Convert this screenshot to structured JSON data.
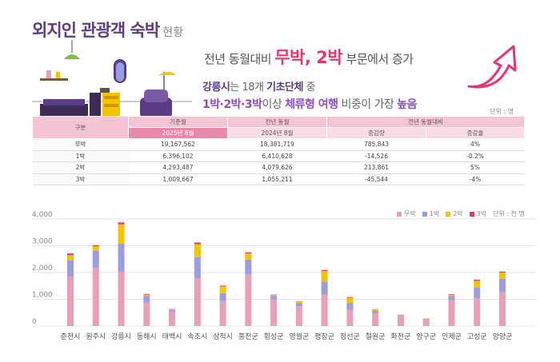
{
  "header": {
    "title": "외지인 관광객 숙박",
    "subtitle": "현황"
  },
  "messages": {
    "line1_prefix": "전년 동월대비",
    "line1_highlight": "무박, 2박",
    "line1_suffix": "부문에서 증가",
    "line2_region": "강릉시",
    "line2_mid": "는 18개",
    "line2_bold": "기초단체",
    "line2_suffix": "중",
    "line3_prefix": "1박·2박·3박",
    "line3_mid": "이상",
    "line3_bold1": "체류형 여행",
    "line3_mid2": "비중이 가장",
    "line3_bold2": "높음"
  },
  "table": {
    "unit": "단위 : 명",
    "col_group": "구분",
    "col_base": "기준월",
    "col_prev": "전년 동월",
    "col_change": "전년 동월대비",
    "sub_base": "2025년 8월",
    "sub_prev": "2024년 8월",
    "sub_diff": "증감량",
    "sub_rate": "증감율",
    "rows": [
      {
        "label": "무박",
        "base": "19,167,562",
        "prev": "18,381,719",
        "diff": "785,843",
        "rate": "4%"
      },
      {
        "label": "1박",
        "base": "6,396,102",
        "prev": "6,410,628",
        "diff": "-14,526",
        "rate": "-0.2%"
      },
      {
        "label": "2박",
        "base": "4,293,487",
        "prev": "4,079,626",
        "diff": "213,861",
        "rate": "5%"
      },
      {
        "label": "3박",
        "base": "1,009,667",
        "prev": "1,055,211",
        "diff": "-45,544",
        "rate": "-4%"
      }
    ]
  },
  "legend": {
    "unit": "단위 : 천 명"
  },
  "colors": {
    "accent": "#5a3d86",
    "highlight": "#e8366d",
    "nobak": "#e8a0b8",
    "bak1": "#9a9ee0",
    "bak2": "#f5c400",
    "bak3": "#e8365a"
  },
  "chart_data": {
    "type": "bar",
    "stacked": true,
    "categories": [
      "춘천시",
      "원주시",
      "강릉시",
      "동해시",
      "태백시",
      "속초시",
      "삼척시",
      "홍천군",
      "횡성군",
      "영월군",
      "평창군",
      "정선군",
      "철원군",
      "화천군",
      "양구군",
      "인제군",
      "고성군",
      "양양군"
    ],
    "series": [
      {
        "name": "무박",
        "values": [
          1850,
          2180,
          2030,
          880,
          540,
          1790,
          930,
          1920,
          1000,
          740,
          1180,
          600,
          470,
          370,
          230,
          970,
          1040,
          1260
        ]
      },
      {
        "name": "1박",
        "values": [
          600,
          630,
          1050,
          250,
          60,
          780,
          300,
          560,
          130,
          120,
          480,
          270,
          100,
          30,
          30,
          150,
          400,
          510
        ]
      },
      {
        "name": "2박",
        "values": [
          200,
          170,
          720,
          50,
          30,
          490,
          250,
          230,
          40,
          60,
          400,
          190,
          50,
          15,
          15,
          50,
          250,
          230
        ]
      },
      {
        "name": "3박",
        "values": [
          60,
          40,
          70,
          20,
          10,
          60,
          30,
          40,
          10,
          10,
          30,
          20,
          10,
          5,
          5,
          20,
          40,
          30
        ]
      }
    ],
    "yticks": [
      "4,000",
      "3,000",
      "2,000",
      "1,000",
      "0"
    ],
    "ylim": [
      0,
      4000
    ],
    "legend_position": "top-right",
    "grid": true
  }
}
